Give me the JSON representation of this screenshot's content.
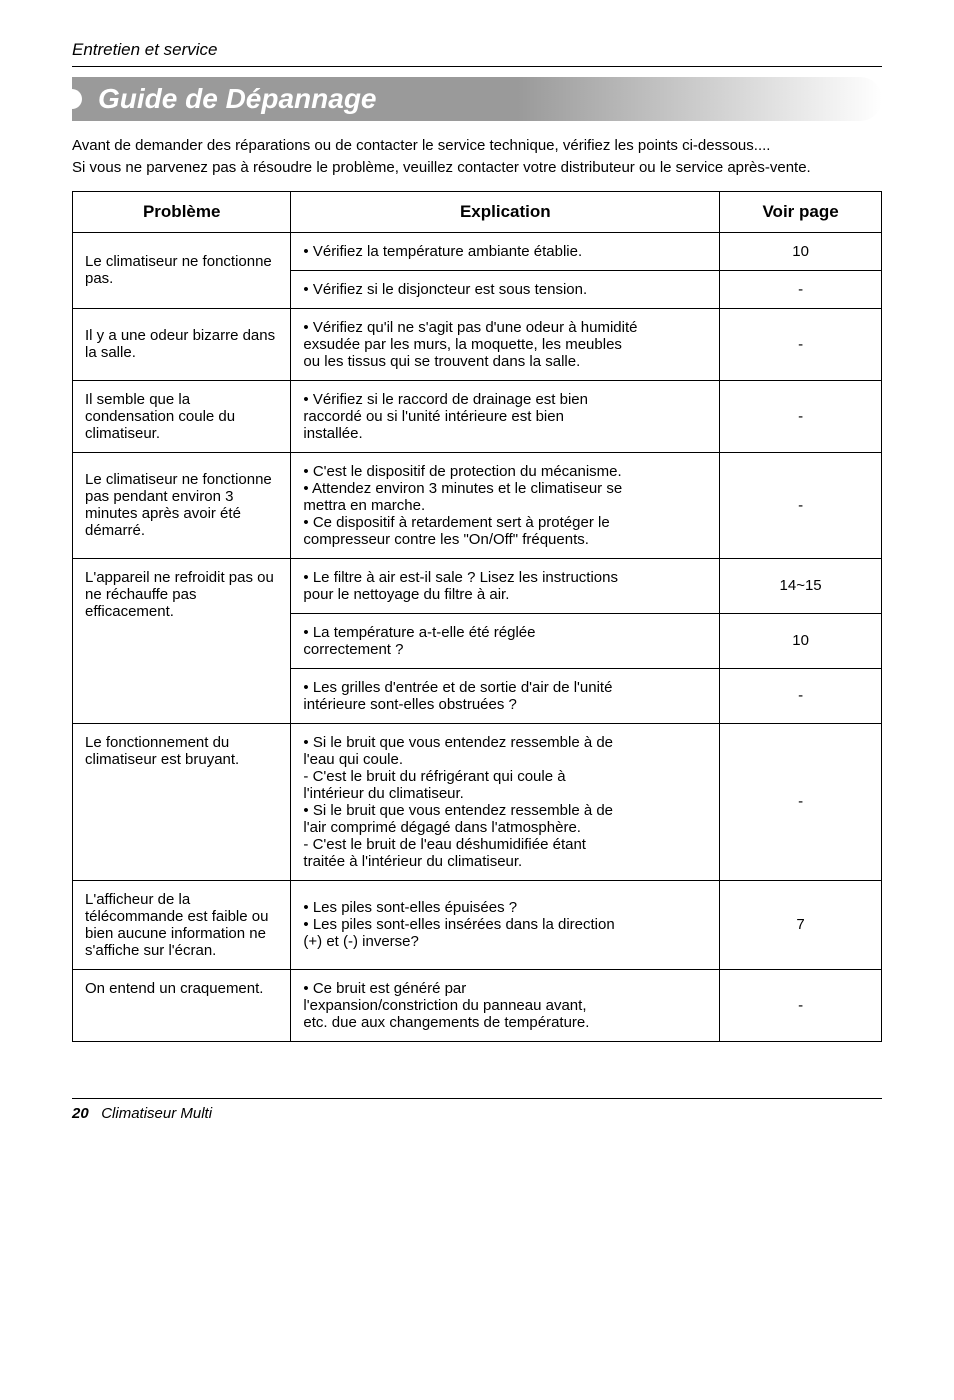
{
  "running_head": "Entretien et service",
  "title": "Guide de Dépannage",
  "intro_line1": "Avant de demander des réparations ou de contacter le service technique, vérifiez les points ci-dessous....",
  "intro_line2": "Si vous ne parvenez pas à résoudre le problème, veuillez contacter votre distributeur ou le service après-vente.",
  "th_problem": "Problème",
  "th_explication": "Explication",
  "th_page": "Voir page",
  "rows": {
    "r0": {
      "prob": "Le climatiseur ne fonctionne pas.",
      "exp1": "• Vérifiez la température ambiante établie.",
      "exp2": "• Vérifiez si le disjoncteur est sous tension.",
      "pg1": "10",
      "pg2": "-"
    },
    "r1": {
      "prob": "Il y a une odeur bizarre dans la salle.",
      "exp": "• Vérifiez qu'il ne s'agit pas d'une odeur à humidité\n  exsudée par les murs, la moquette, les meubles\n  ou les tissus qui se trouvent dans la salle.",
      "pg": "-"
    },
    "r2": {
      "prob": "Il semble que la condensation coule du climatiseur.",
      "exp": "• Vérifiez si le raccord de drainage est bien\n  raccordé ou si l'unité intérieure est bien\n  installée.",
      "pg": "-"
    },
    "r3": {
      "prob": "Le climatiseur ne fonctionne pas pendant environ 3 minutes après avoir été démarré.",
      "exp": "• C'est le dispositif de protection du mécanisme.\n• Attendez environ 3 minutes et le climatiseur se\n  mettra en marche.\n• Ce dispositif à retardement sert à protéger le\n  compresseur contre les \"On/Off\" fréquents.",
      "pg": "-"
    },
    "r4": {
      "prob": "L'appareil ne refroidit pas ou ne réchauffe pas efficacement.",
      "exp1": "• Le filtre à air est-il sale ? Lisez les instructions\n  pour le nettoyage du filtre à air.",
      "pg1": "14~15",
      "exp2": "• La température a-t-elle été réglée\n  correctement ?",
      "pg2": "10",
      "exp3": "• Les grilles d'entrée et de sortie d'air de l'unité\n  intérieure sont-elles obstruées ?",
      "pg3": "-"
    },
    "r5": {
      "prob": "Le fonctionnement du climatiseur est bruyant.",
      "exp": "• Si le bruit que vous entendez ressemble à de\n  l'eau qui coule.\n  - C'est le bruit du réfrigérant qui coule à\n    l'intérieur du climatiseur.\n• Si le bruit que vous entendez ressemble à de\n  l'air comprimé dégagé dans l'atmosphère.\n  - C'est le bruit de l'eau déshumidifiée étant\n    traitée à l'intérieur du climatiseur.",
      "pg": "-"
    },
    "r6": {
      "prob": "L'afficheur de la télécommande est faible ou bien aucune information ne s'affiche sur l'écran.",
      "exp": "• Les piles sont-elles épuisées ?\n• Les piles sont-elles insérées dans la direction\n  (+) et (-) inverse?",
      "pg": "7"
    },
    "r7": {
      "prob": "On entend un craquement.",
      "exp": "• Ce bruit est généré par\n  l'expansion/constriction du panneau avant,\n  etc. due aux changements de température.",
      "pg": "-"
    }
  },
  "footer_page": "20",
  "footer_book": "Climatiseur Multi"
}
